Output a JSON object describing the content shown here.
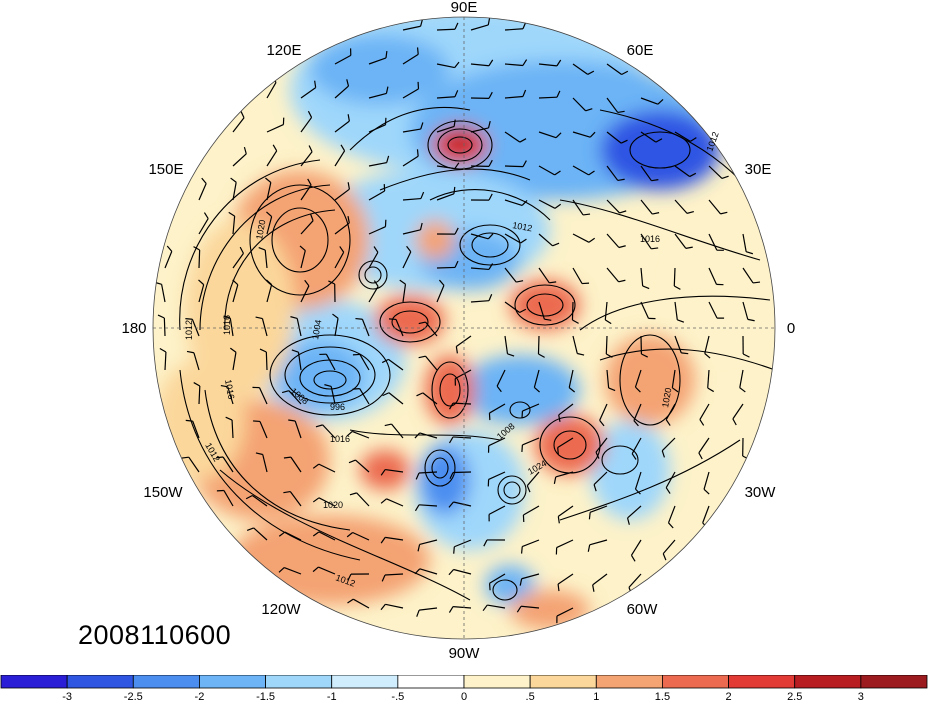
{
  "timestamp": "2008110600",
  "longitude_labels": [
    "90E",
    "120E",
    "60E",
    "150E",
    "30E",
    "180",
    "0",
    "150W",
    "30W",
    "120W",
    "60W",
    "90W"
  ],
  "contour_labels": [
    "1020",
    "1012",
    "1016",
    "1004",
    "1008",
    "996",
    "1016",
    "1012",
    "1016",
    "1020",
    "1012",
    "1012",
    "1016",
    "1020",
    "1024",
    "1012",
    "1008"
  ],
  "colorbar": {
    "labels": [
      "-3",
      "-2.5",
      "-2",
      "-1.5",
      "-1",
      "-.5",
      "0",
      ".5",
      "1",
      "1.5",
      "2",
      "2.5",
      "3"
    ],
    "colors": [
      "#2a1fd6",
      "#2f55e3",
      "#4c8ef0",
      "#6cb4f6",
      "#9fd7fb",
      "#cfedfd",
      "#ffffff",
      "#fdf2c9",
      "#fbd79b",
      "#f4a373",
      "#ec6a50",
      "#e23a34",
      "#b81d22",
      "#9b1b1e"
    ]
  }
}
